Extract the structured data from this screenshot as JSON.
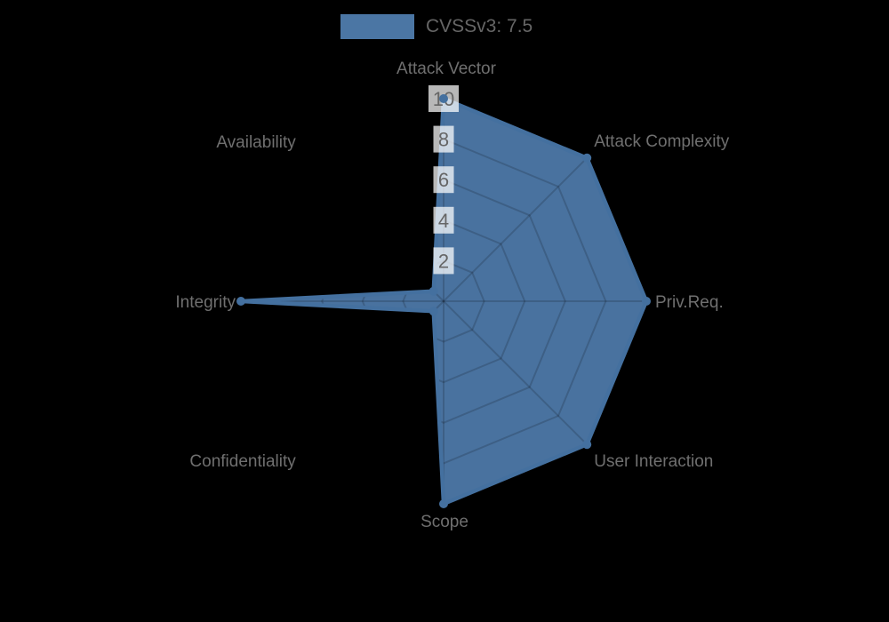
{
  "legend": {
    "label": "CVSSv3: 7.5"
  },
  "chart_data": {
    "type": "radar",
    "title": "",
    "legend_position": "top",
    "grid": true,
    "categories": [
      "Attack Vector",
      "Attack Complexity",
      "Priv.Req.",
      "User Interaction",
      "Scope",
      "Confidentiality",
      "Integrity",
      "Availability"
    ],
    "series": [
      {
        "name": "CVSSv3: 7.5",
        "values": [
          10,
          10,
          10,
          10,
          10,
          0.7,
          10,
          0.7
        ]
      }
    ],
    "scale": {
      "min": 0,
      "max": 10,
      "tick_labels": [
        "2",
        "4",
        "6",
        "8",
        "10"
      ]
    },
    "colors": {
      "background": "#000000",
      "series_fill": "#4b76a4",
      "series_border": "#44709f",
      "axis_label": "#6f6f6f",
      "tick_text": "#666666",
      "tick_backdrop": "rgba(255,255,255,0.72)",
      "grid_line": "rgba(0,0,0,0.16)"
    }
  }
}
